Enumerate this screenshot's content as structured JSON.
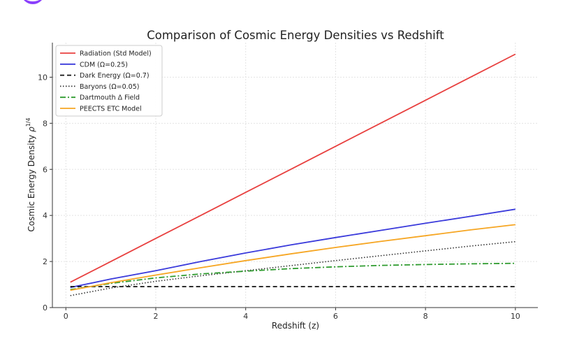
{
  "chart_data": {
    "type": "line",
    "title": "Comparison of Cosmic Energy Densities vs Redshift",
    "xlabel": "Redshift (z)",
    "ylabel_text": "Cosmic Energy Density ",
    "ylabel_symbol": "ρ",
    "ylabel_exponent": "1/4",
    "xlim": [
      -0.3,
      10.5
    ],
    "ylim": [
      0,
      11.5
    ],
    "xticks": [
      0,
      2,
      4,
      6,
      8,
      10
    ],
    "yticks": [
      0,
      2,
      4,
      6,
      8,
      10
    ],
    "grid": true,
    "legend_position": "top-left",
    "series": [
      {
        "name": "Radiation (Std Model)",
        "color": "#e8403f",
        "style": "solid",
        "x": [
          0.1,
          1,
          2,
          3,
          4,
          5,
          6,
          7,
          8,
          9,
          10
        ],
        "y": [
          1.1,
          2.0,
          3.0,
          4.0,
          5.0,
          6.0,
          7.0,
          8.0,
          9.0,
          10.0,
          11.0
        ]
      },
      {
        "name": "CDM (Ω=0.25)",
        "color": "#3a3adb",
        "style": "solid",
        "x": [
          0.1,
          1,
          2,
          3,
          4,
          5,
          6,
          7,
          8,
          9,
          10
        ],
        "y": [
          0.87,
          1.24,
          1.6,
          2.0,
          2.37,
          2.72,
          3.04,
          3.35,
          3.66,
          3.96,
          4.27
        ]
      },
      {
        "name": "Dark Energy (Ω=0.7)",
        "color": "#111111",
        "style": "dashed",
        "x": [
          0.1,
          10
        ],
        "y": [
          0.91,
          0.91
        ]
      },
      {
        "name": "Baryons (Ω=0.05)",
        "color": "#333333",
        "style": "dotted",
        "x": [
          0.1,
          1,
          2,
          3,
          4,
          5,
          6,
          7,
          8,
          9,
          10
        ],
        "y": [
          0.52,
          0.85,
          1.14,
          1.38,
          1.6,
          1.82,
          2.04,
          2.25,
          2.46,
          2.67,
          2.86
        ]
      },
      {
        "name": "Dartmouth Δ Field",
        "color": "#2f9b2f",
        "style": "dashdot",
        "x": [
          0.1,
          1,
          2,
          3,
          4,
          5,
          6,
          7,
          8,
          9,
          10
        ],
        "y": [
          0.78,
          1.05,
          1.29,
          1.46,
          1.58,
          1.69,
          1.77,
          1.83,
          1.87,
          1.9,
          1.92
        ]
      },
      {
        "name": "PEECTS ETC Model",
        "color": "#f6a623",
        "style": "solid",
        "x": [
          0.1,
          1,
          2,
          3,
          4,
          5,
          6,
          7,
          8,
          9,
          10
        ],
        "y": [
          0.75,
          1.08,
          1.41,
          1.73,
          2.04,
          2.33,
          2.61,
          2.87,
          3.12,
          3.37,
          3.6
        ]
      }
    ]
  }
}
